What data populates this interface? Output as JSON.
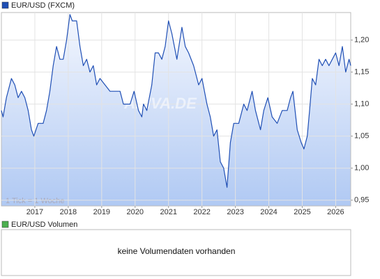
{
  "chart_data": {
    "type": "line",
    "series": [
      {
        "name": "EUR/USD (FXCM)",
        "color": "#1f4fb5",
        "values": [
          1.09,
          1.08,
          1.11,
          1.14,
          1.13,
          1.11,
          1.12,
          1.11,
          1.09,
          1.06,
          1.05,
          1.07,
          1.07,
          1.09,
          1.12,
          1.16,
          1.19,
          1.17,
          1.17,
          1.2,
          1.24,
          1.23,
          1.23,
          1.19,
          1.16,
          1.17,
          1.15,
          1.16,
          1.13,
          1.14,
          1.13,
          1.12,
          1.12,
          1.12,
          1.1,
          1.1,
          1.1,
          1.12,
          1.09,
          1.08,
          1.1,
          1.09,
          1.13,
          1.18,
          1.18,
          1.17,
          1.19,
          1.23,
          1.21,
          1.17,
          1.22,
          1.19,
          1.18,
          1.16,
          1.13,
          1.14,
          1.1,
          1.08,
          1.05,
          1.06,
          1.01,
          1.0,
          0.97,
          1.04,
          1.07,
          1.07,
          1.1,
          1.09,
          1.12,
          1.09,
          1.06,
          1.09,
          1.11,
          1.08,
          1.07,
          1.09,
          1.09,
          1.11,
          1.12,
          1.06,
          1.04,
          1.03,
          1.05,
          1.09,
          1.14,
          1.13,
          1.17,
          1.16,
          1.17,
          1.16,
          1.17,
          1.18,
          1.16,
          1.19,
          1.15,
          1.17,
          1.16
        ]
      }
    ],
    "x": [
      2016.0,
      2016.05,
      2016.15,
      2016.3,
      2016.4,
      2016.5,
      2016.6,
      2016.7,
      2016.8,
      2016.9,
      2016.97,
      2017.1,
      2017.25,
      2017.35,
      2017.45,
      2017.55,
      2017.65,
      2017.75,
      2017.85,
      2017.95,
      2018.05,
      2018.12,
      2018.25,
      2018.35,
      2018.45,
      2018.55,
      2018.65,
      2018.75,
      2018.85,
      2018.95,
      2019.1,
      2019.25,
      2019.4,
      2019.55,
      2019.65,
      2019.75,
      2019.85,
      2019.97,
      2020.1,
      2020.2,
      2020.25,
      2020.35,
      2020.5,
      2020.6,
      2020.7,
      2020.8,
      2020.9,
      2021.0,
      2021.1,
      2021.25,
      2021.4,
      2021.5,
      2021.6,
      2021.75,
      2021.9,
      2022.0,
      2022.15,
      2022.25,
      2022.35,
      2022.45,
      2022.55,
      2022.65,
      2022.75,
      2022.85,
      2022.95,
      2023.1,
      2023.25,
      2023.35,
      2023.5,
      2023.6,
      2023.75,
      2023.85,
      2023.97,
      2024.1,
      2024.25,
      2024.4,
      2024.55,
      2024.65,
      2024.72,
      2024.85,
      2024.97,
      2025.05,
      2025.15,
      2025.22,
      2025.3,
      2025.4,
      2025.5,
      2025.6,
      2025.7,
      2025.8,
      2025.9,
      2026.0,
      2026.1,
      2026.2,
      2026.3,
      2026.4,
      2026.45
    ],
    "xlim": [
      2016.0,
      2026.45
    ],
    "xticks": [
      2017,
      2018,
      2019,
      2020,
      2021,
      2022,
      2023,
      2024,
      2025,
      2026
    ],
    "ylim": [
      0.941,
      1.243
    ],
    "yticks": [
      {
        "value": 0.95,
        "label": "0,95"
      },
      {
        "value": 1.0,
        "label": "1,00"
      },
      {
        "value": 1.05,
        "label": "1,05"
      },
      {
        "value": 1.1,
        "label": "1,10"
      },
      {
        "value": 1.15,
        "label": "1,15"
      },
      {
        "value": 1.2,
        "label": "1,20"
      }
    ],
    "grid": true,
    "annotation": "1 Tick = 1 Woche",
    "watermark": "ARIVA.DE"
  },
  "volume_panel": {
    "legend": "EUR/USD Volumen",
    "color": "#4caf50",
    "message": "keine Volumendaten vorhanden"
  }
}
